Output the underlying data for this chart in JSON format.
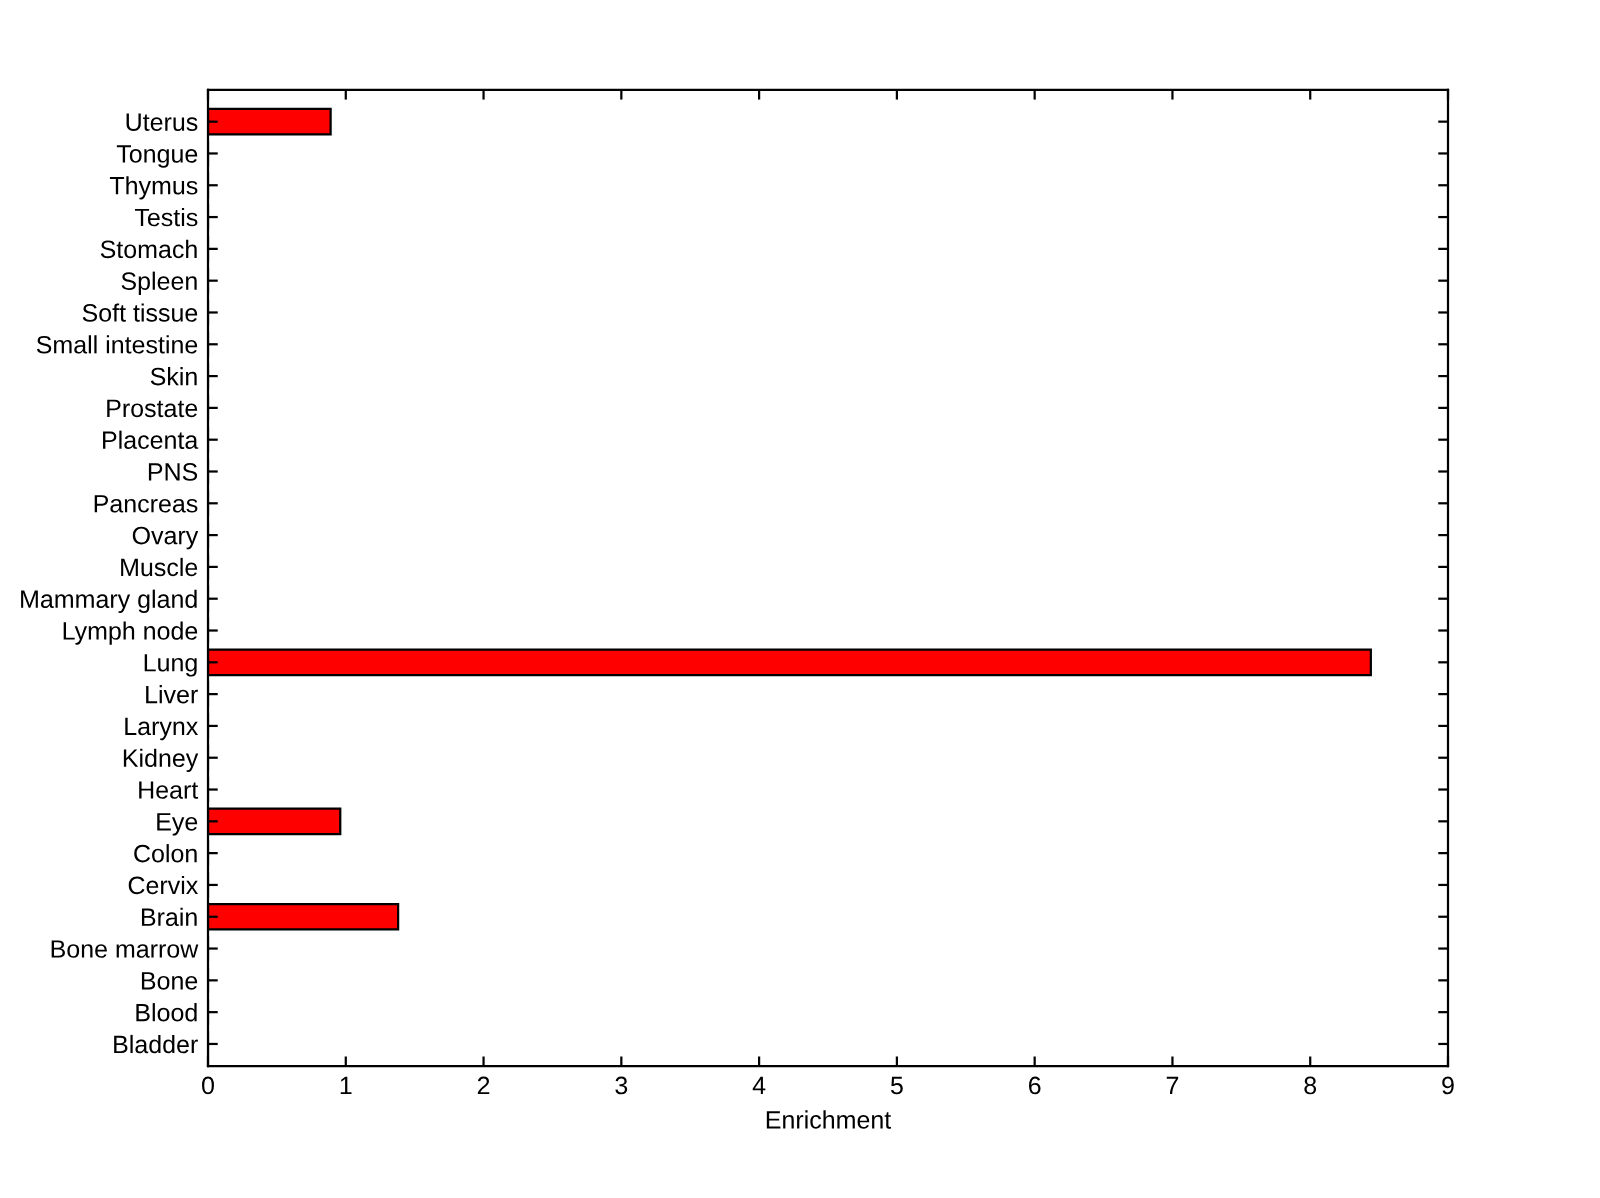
{
  "chart_data": {
    "type": "bar",
    "orientation": "horizontal",
    "xlabel": "Enrichment",
    "categories": [
      "Uterus",
      "Tongue",
      "Thymus",
      "Testis",
      "Stomach",
      "Spleen",
      "Soft tissue",
      "Small intestine",
      "Skin",
      "Prostate",
      "Placenta",
      "PNS",
      "Pancreas",
      "Ovary",
      "Muscle",
      "Mammary gland",
      "Lymph node",
      "Lung",
      "Liver",
      "Larynx",
      "Kidney",
      "Heart",
      "Eye",
      "Colon",
      "Cervix",
      "Brain",
      "Bone marrow",
      "Bone",
      "Blood",
      "Bladder"
    ],
    "values": [
      0.89,
      0,
      0,
      0,
      0,
      0,
      0,
      0,
      0,
      0,
      0,
      0,
      0,
      0,
      0,
      0,
      0,
      8.44,
      0,
      0,
      0,
      0,
      0.96,
      0,
      0,
      1.38,
      0,
      0,
      0,
      0
    ],
    "color": "#ff0000",
    "xlim": [
      0,
      9
    ],
    "xticks": [
      0,
      1,
      2,
      3,
      4,
      5,
      6,
      7,
      8,
      9
    ],
    "grid": false,
    "legend": false
  }
}
